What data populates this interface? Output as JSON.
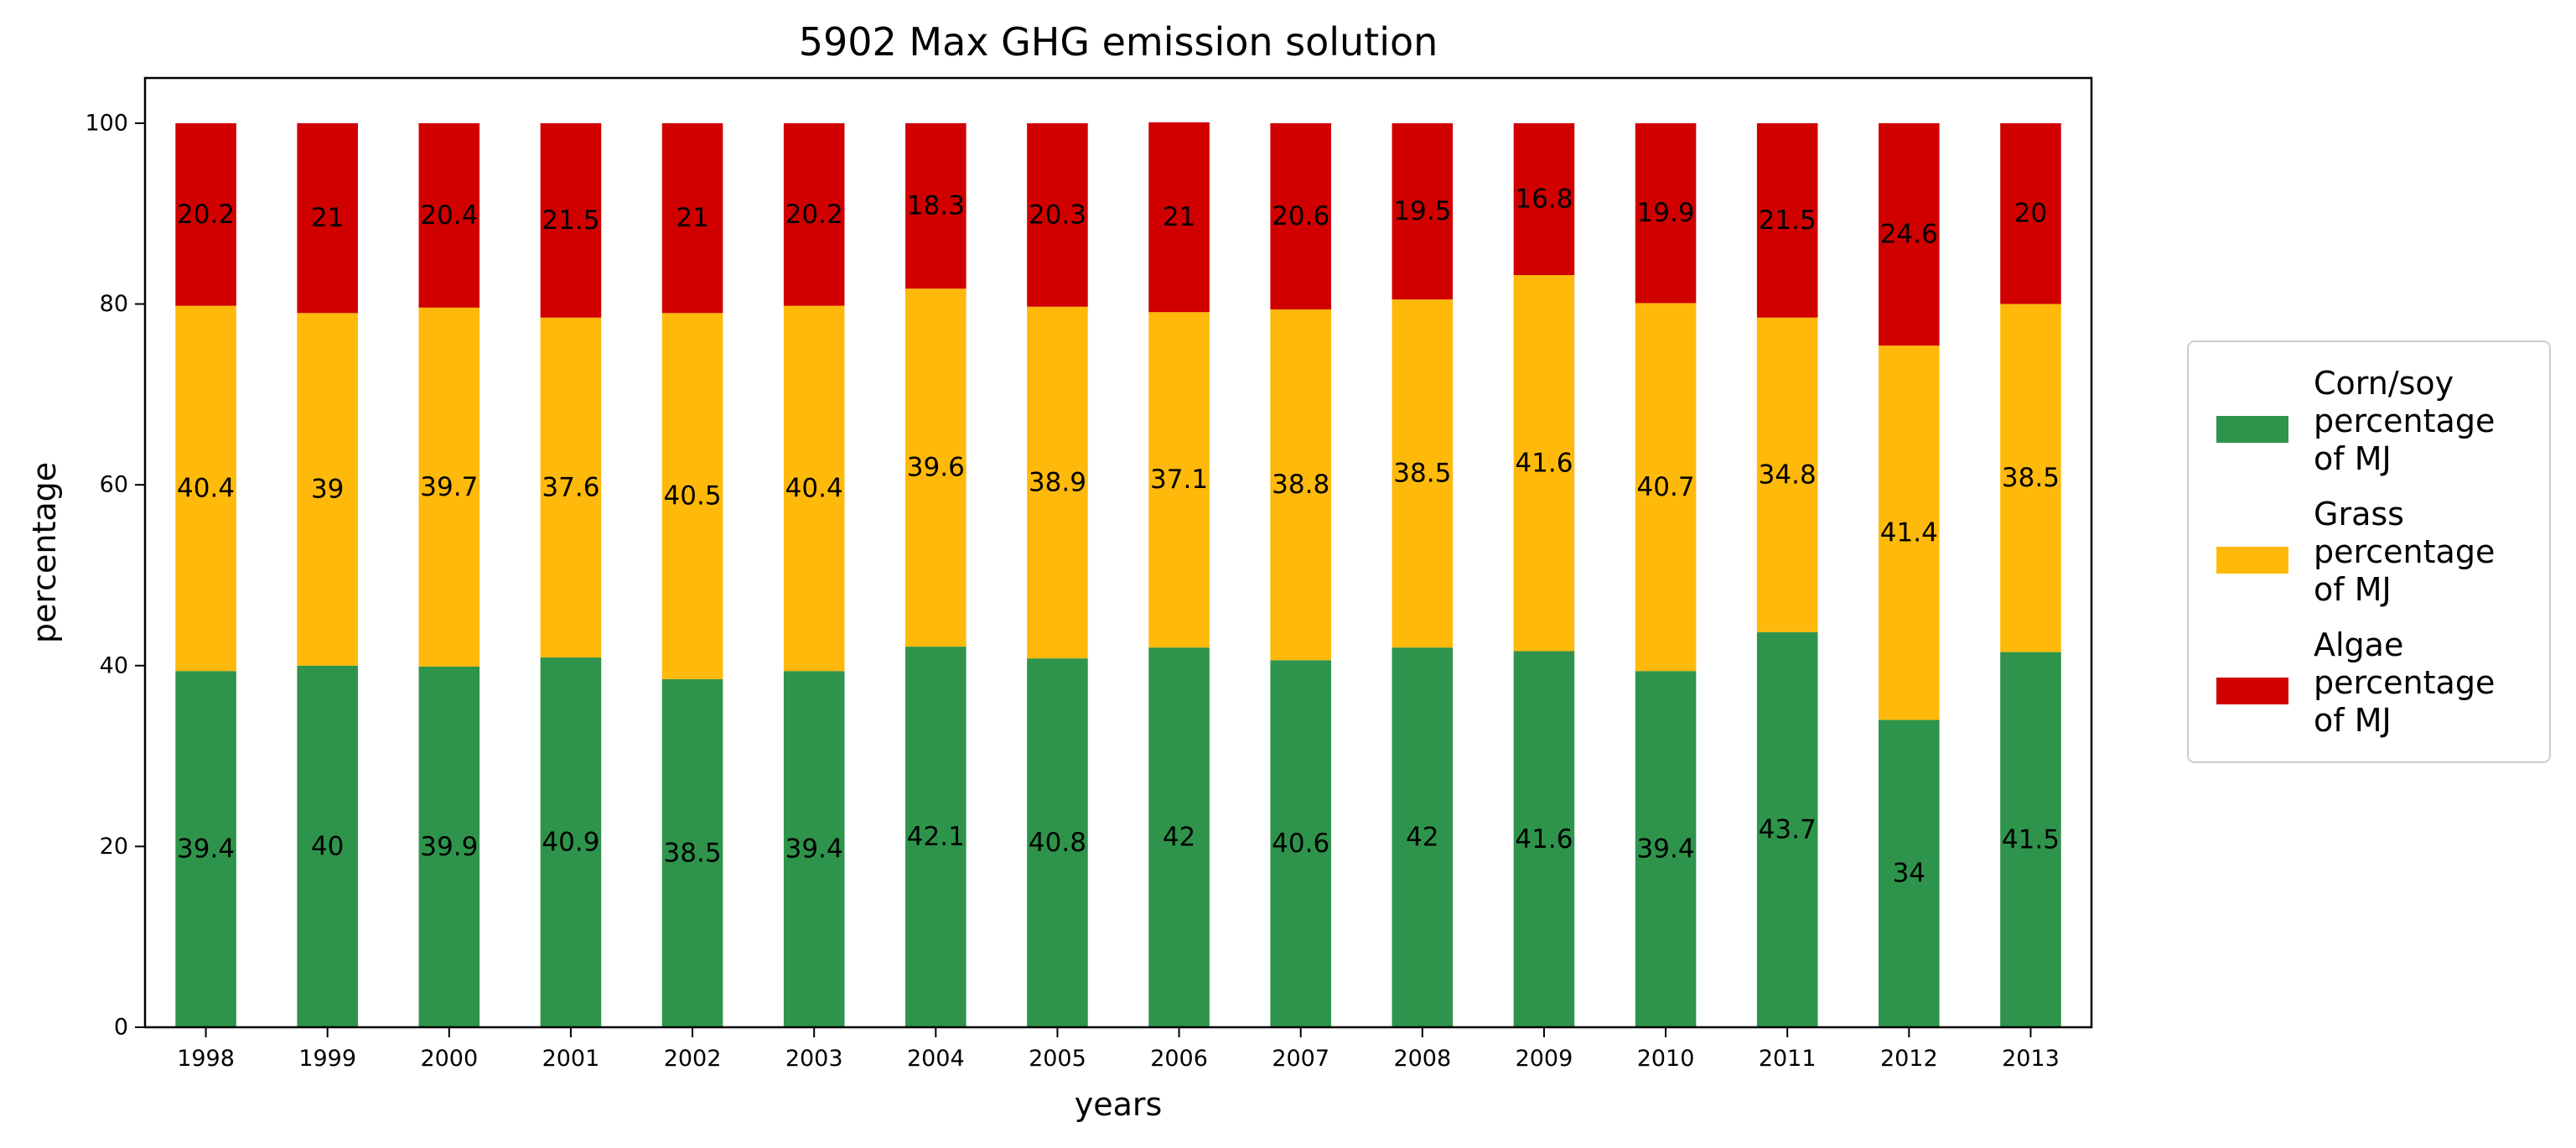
{
  "chart_data": {
    "type": "bar",
    "stacked": true,
    "title": "5902 Max GHG emission solution",
    "xlabel": "years",
    "ylabel": "percentage",
    "ylim": [
      0,
      105
    ],
    "yticks": [
      0,
      20,
      40,
      60,
      80,
      100
    ],
    "grid": false,
    "legend_position": "right, outside plot",
    "categories": [
      "1998",
      "1999",
      "2000",
      "2001",
      "2002",
      "2003",
      "2004",
      "2005",
      "2006",
      "2007",
      "2008",
      "2009",
      "2010",
      "2011",
      "2012",
      "2013"
    ],
    "series": [
      {
        "name": "Corn/soy percentage of MJ",
        "legend_lines": [
          "Corn/soy",
          "percentage",
          "of MJ"
        ],
        "color": "#2e944b",
        "values": [
          39.4,
          40,
          39.9,
          40.9,
          38.5,
          39.4,
          42.1,
          40.8,
          42,
          40.6,
          42,
          41.6,
          39.4,
          43.7,
          34,
          41.5
        ]
      },
      {
        "name": "Grass percentage of MJ",
        "legend_lines": [
          "Grass",
          "percentage",
          "of MJ"
        ],
        "color": "#ffb90a",
        "values": [
          40.4,
          39,
          39.7,
          37.6,
          40.5,
          40.4,
          39.6,
          38.9,
          37.1,
          38.8,
          38.5,
          41.6,
          40.7,
          34.8,
          41.4,
          38.5
        ]
      },
      {
        "name": "Algae percentage of MJ",
        "legend_lines": [
          "Algae",
          "percentage",
          "of MJ"
        ],
        "color": "#d10000",
        "values": [
          20.2,
          21,
          20.4,
          21.5,
          21,
          20.2,
          18.3,
          20.3,
          21,
          20.6,
          19.5,
          16.8,
          19.9,
          21.5,
          24.6,
          20
        ]
      }
    ]
  }
}
